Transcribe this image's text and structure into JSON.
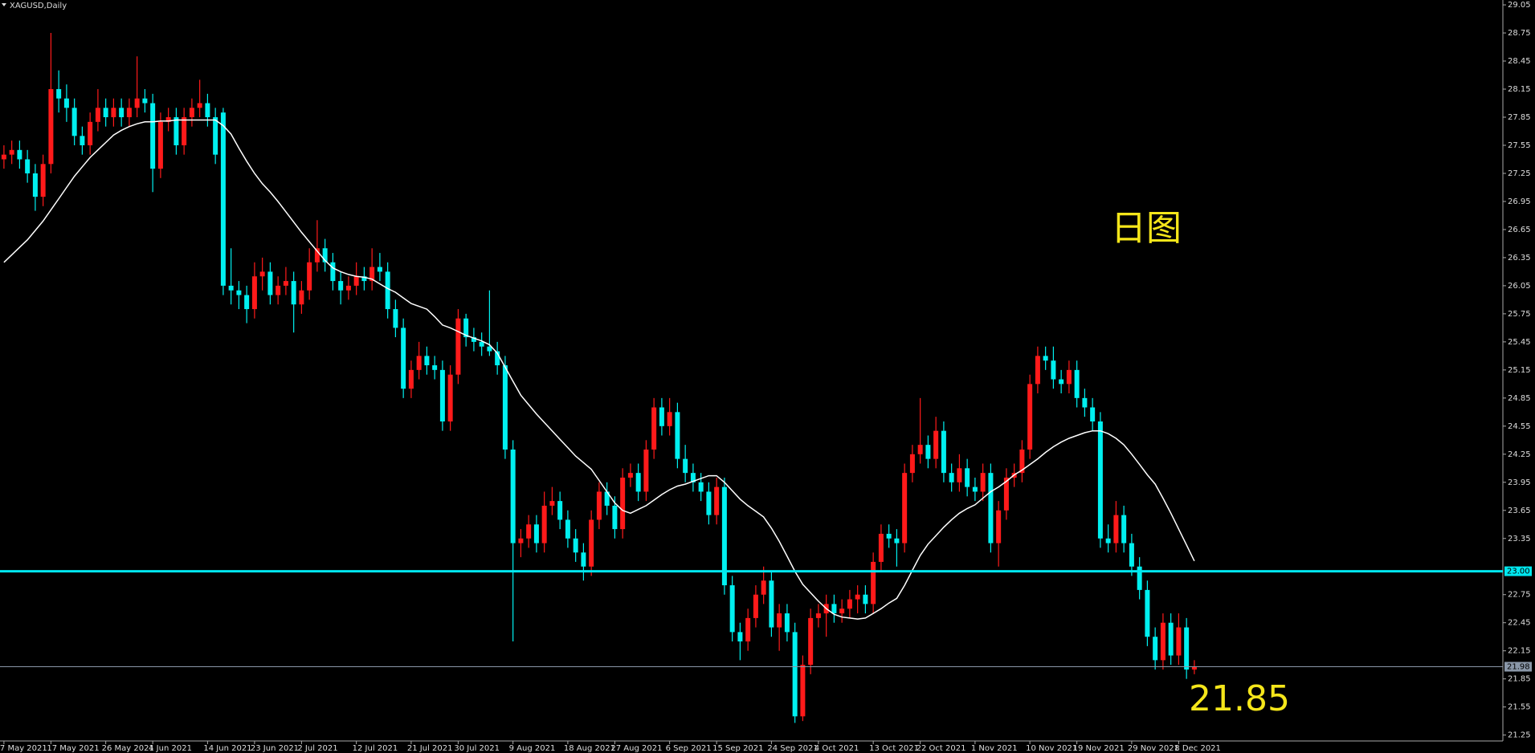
{
  "chart_data": {
    "type": "candlestick",
    "title": "XAGUSD,Daily",
    "ylim": [
      21.187,
      29.102
    ],
    "yticks": [
      29.05,
      28.75,
      28.45,
      28.15,
      27.85,
      27.55,
      27.25,
      26.95,
      26.65,
      26.35,
      26.05,
      25.75,
      25.45,
      25.15,
      24.85,
      24.55,
      24.25,
      23.95,
      23.65,
      23.35,
      22.75,
      22.45,
      22.15,
      21.85,
      21.55,
      21.25
    ],
    "xticks": [
      {
        "value": 0,
        "label": "7 May 2021"
      },
      {
        "value": 6,
        "label": "17 May 2021"
      },
      {
        "value": 13,
        "label": "26 May 2021"
      },
      {
        "value": 19,
        "label": "4 Jun 2021"
      },
      {
        "value": 26,
        "label": "14 Jun 2021"
      },
      {
        "value": 32,
        "label": "23 Jun 2021"
      },
      {
        "value": 38,
        "label": "2 Jul 2021"
      },
      {
        "value": 45,
        "label": "12 Jul 2021"
      },
      {
        "value": 52,
        "label": "21 Jul 2021"
      },
      {
        "value": 58,
        "label": "30 Jul 2021"
      },
      {
        "value": 65,
        "label": "9 Aug 2021"
      },
      {
        "value": 72,
        "label": "18 Aug 2021"
      },
      {
        "value": 78,
        "label": "27 Aug 2021"
      },
      {
        "value": 85,
        "label": "6 Sep 2021"
      },
      {
        "value": 91,
        "label": "15 Sep 2021"
      },
      {
        "value": 98,
        "label": "24 Sep 2021"
      },
      {
        "value": 104,
        "label": "4 Oct 2021"
      },
      {
        "value": 111,
        "label": "13 Oct 2021"
      },
      {
        "value": 117,
        "label": "22 Oct 2021"
      },
      {
        "value": 124,
        "label": "1 Nov 2021"
      },
      {
        "value": 131,
        "label": "10 Nov 2021"
      },
      {
        "value": 137,
        "label": "19 Nov 2021"
      },
      {
        "value": 144,
        "label": "29 Nov 2021"
      },
      {
        "value": 150,
        "label": "8 Dec 2021"
      }
    ],
    "up_color": "#ff1a1a",
    "down_color": "#00f0f0",
    "ohlc": [
      [
        27.4,
        27.55,
        27.3,
        27.45
      ],
      [
        27.45,
        27.6,
        27.35,
        27.5
      ],
      [
        27.5,
        27.6,
        27.3,
        27.4
      ],
      [
        27.4,
        27.5,
        27.15,
        27.25
      ],
      [
        27.25,
        27.35,
        26.85,
        27.0
      ],
      [
        27.0,
        27.45,
        26.9,
        27.35
      ],
      [
        27.35,
        28.75,
        27.25,
        28.15
      ],
      [
        28.15,
        28.35,
        27.9,
        28.05
      ],
      [
        28.05,
        28.2,
        27.8,
        27.95
      ],
      [
        27.95,
        28.05,
        27.55,
        27.65
      ],
      [
        27.65,
        27.75,
        27.45,
        27.55
      ],
      [
        27.55,
        27.9,
        27.45,
        27.8
      ],
      [
        27.8,
        28.15,
        27.7,
        27.95
      ],
      [
        27.95,
        28.05,
        27.75,
        27.85
      ],
      [
        27.85,
        28.05,
        27.75,
        27.95
      ],
      [
        27.95,
        28.05,
        27.75,
        27.85
      ],
      [
        27.85,
        28.05,
        27.75,
        27.95
      ],
      [
        27.95,
        28.5,
        27.85,
        28.05
      ],
      [
        28.05,
        28.15,
        27.9,
        28.0
      ],
      [
        28.0,
        28.1,
        27.05,
        27.3
      ],
      [
        27.3,
        27.9,
        27.2,
        27.8
      ],
      [
        27.8,
        27.95,
        27.7,
        27.85
      ],
      [
        27.85,
        27.95,
        27.45,
        27.55
      ],
      [
        27.55,
        27.95,
        27.45,
        27.85
      ],
      [
        27.85,
        28.05,
        27.75,
        27.95
      ],
      [
        27.95,
        28.25,
        27.85,
        28.0
      ],
      [
        28.0,
        28.1,
        27.75,
        27.85
      ],
      [
        27.85,
        27.95,
        27.35,
        27.45
      ],
      [
        27.9,
        27.95,
        25.95,
        26.05
      ],
      [
        26.05,
        26.45,
        25.85,
        26.0
      ],
      [
        26.0,
        26.1,
        25.8,
        25.95
      ],
      [
        25.95,
        26.05,
        25.65,
        25.8
      ],
      [
        25.8,
        26.3,
        25.7,
        26.15
      ],
      [
        26.15,
        26.35,
        26.0,
        26.2
      ],
      [
        26.2,
        26.3,
        25.85,
        25.95
      ],
      [
        25.95,
        26.15,
        25.85,
        26.05
      ],
      [
        26.05,
        26.25,
        25.95,
        26.1
      ],
      [
        26.1,
        26.2,
        25.55,
        25.85
      ],
      [
        25.85,
        26.1,
        25.75,
        26.0
      ],
      [
        26.0,
        26.45,
        25.9,
        26.3
      ],
      [
        26.3,
        26.75,
        26.2,
        26.45
      ],
      [
        26.45,
        26.55,
        26.2,
        26.3
      ],
      [
        26.3,
        26.4,
        26.0,
        26.1
      ],
      [
        26.1,
        26.2,
        25.85,
        26.0
      ],
      [
        26.0,
        26.15,
        25.9,
        26.05
      ],
      [
        26.05,
        26.3,
        25.95,
        26.15
      ],
      [
        26.15,
        26.25,
        26.0,
        26.1
      ],
      [
        26.1,
        26.45,
        26.0,
        26.25
      ],
      [
        26.25,
        26.4,
        26.1,
        26.2
      ],
      [
        26.2,
        26.3,
        25.7,
        25.8
      ],
      [
        25.8,
        25.9,
        25.5,
        25.6
      ],
      [
        25.6,
        25.7,
        24.85,
        24.95
      ],
      [
        24.95,
        25.25,
        24.85,
        25.15
      ],
      [
        25.15,
        25.45,
        25.05,
        25.3
      ],
      [
        25.3,
        25.4,
        25.1,
        25.2
      ],
      [
        25.2,
        25.3,
        25.05,
        25.15
      ],
      [
        25.15,
        25.25,
        24.5,
        24.6
      ],
      [
        24.6,
        25.2,
        24.5,
        25.1
      ],
      [
        25.1,
        25.8,
        25.0,
        25.7
      ],
      [
        25.7,
        25.75,
        25.4,
        25.5
      ],
      [
        25.5,
        25.6,
        25.35,
        25.45
      ],
      [
        25.45,
        25.55,
        25.3,
        25.4
      ],
      [
        25.4,
        26.0,
        25.3,
        25.35
      ],
      [
        25.35,
        25.45,
        25.1,
        25.2
      ],
      [
        25.2,
        25.3,
        24.2,
        24.3
      ],
      [
        24.3,
        24.4,
        22.25,
        23.3
      ],
      [
        23.3,
        23.45,
        23.15,
        23.35
      ],
      [
        23.35,
        23.6,
        23.25,
        23.5
      ],
      [
        23.5,
        23.6,
        23.2,
        23.3
      ],
      [
        23.3,
        23.85,
        23.2,
        23.7
      ],
      [
        23.7,
        23.9,
        23.6,
        23.75
      ],
      [
        23.75,
        23.85,
        23.45,
        23.55
      ],
      [
        23.55,
        23.65,
        23.25,
        23.35
      ],
      [
        23.35,
        23.45,
        23.1,
        23.2
      ],
      [
        23.2,
        23.3,
        22.9,
        23.05
      ],
      [
        23.05,
        23.65,
        22.95,
        23.55
      ],
      [
        23.55,
        23.95,
        23.45,
        23.85
      ],
      [
        23.85,
        23.95,
        23.6,
        23.7
      ],
      [
        23.7,
        23.8,
        23.35,
        23.45
      ],
      [
        23.45,
        24.1,
        23.35,
        24.0
      ],
      [
        24.0,
        24.15,
        23.9,
        24.05
      ],
      [
        24.05,
        24.15,
        23.75,
        23.85
      ],
      [
        23.85,
        24.4,
        23.75,
        24.3
      ],
      [
        24.3,
        24.85,
        24.2,
        24.75
      ],
      [
        24.75,
        24.85,
        24.45,
        24.55
      ],
      [
        24.55,
        24.85,
        24.45,
        24.7
      ],
      [
        24.7,
        24.8,
        24.1,
        24.2
      ],
      [
        24.2,
        24.35,
        23.95,
        24.05
      ],
      [
        24.05,
        24.15,
        23.85,
        23.95
      ],
      [
        23.95,
        24.05,
        23.75,
        23.85
      ],
      [
        23.85,
        23.95,
        23.5,
        23.6
      ],
      [
        23.6,
        24.0,
        23.5,
        23.9
      ],
      [
        23.9,
        24.0,
        22.75,
        22.85
      ],
      [
        22.85,
        22.95,
        22.25,
        22.35
      ],
      [
        22.35,
        22.45,
        22.05,
        22.25
      ],
      [
        22.25,
        22.6,
        22.15,
        22.5
      ],
      [
        22.5,
        22.85,
        22.4,
        22.75
      ],
      [
        22.75,
        23.05,
        22.65,
        22.9
      ],
      [
        22.9,
        23.0,
        22.3,
        22.4
      ],
      [
        22.4,
        22.65,
        22.15,
        22.55
      ],
      [
        22.55,
        22.65,
        22.25,
        22.35
      ],
      [
        22.35,
        22.45,
        21.38,
        21.45
      ],
      [
        21.45,
        22.1,
        21.4,
        22.0
      ],
      [
        22.0,
        22.6,
        21.9,
        22.5
      ],
      [
        22.5,
        22.65,
        22.4,
        22.55
      ],
      [
        22.55,
        22.75,
        22.3,
        22.65
      ],
      [
        22.65,
        22.75,
        22.45,
        22.55
      ],
      [
        22.55,
        22.7,
        22.45,
        22.6
      ],
      [
        22.6,
        22.8,
        22.5,
        22.7
      ],
      [
        22.7,
        22.85,
        22.55,
        22.75
      ],
      [
        22.75,
        22.85,
        22.55,
        22.65
      ],
      [
        22.65,
        23.2,
        22.55,
        23.1
      ],
      [
        23.1,
        23.5,
        23.0,
        23.4
      ],
      [
        23.4,
        23.5,
        23.25,
        23.35
      ],
      [
        23.35,
        23.45,
        23.05,
        23.3
      ],
      [
        23.3,
        24.15,
        23.2,
        24.05
      ],
      [
        24.05,
        24.35,
        23.95,
        24.25
      ],
      [
        24.25,
        24.85,
        24.15,
        24.35
      ],
      [
        24.35,
        24.45,
        24.1,
        24.2
      ],
      [
        24.2,
        24.65,
        24.1,
        24.5
      ],
      [
        24.5,
        24.6,
        23.95,
        24.05
      ],
      [
        24.05,
        24.15,
        23.85,
        23.95
      ],
      [
        23.95,
        24.25,
        23.85,
        24.1
      ],
      [
        24.1,
        24.2,
        23.8,
        23.9
      ],
      [
        23.9,
        24.0,
        23.75,
        23.85
      ],
      [
        23.85,
        24.15,
        23.75,
        24.05
      ],
      [
        24.05,
        24.15,
        23.2,
        23.3
      ],
      [
        23.3,
        23.75,
        23.05,
        23.65
      ],
      [
        23.65,
        24.1,
        23.55,
        24.0
      ],
      [
        24.0,
        24.15,
        23.9,
        24.05
      ],
      [
        24.05,
        24.4,
        23.95,
        24.3
      ],
      [
        24.3,
        25.1,
        24.2,
        25.0
      ],
      [
        25.0,
        25.4,
        24.9,
        25.3
      ],
      [
        25.3,
        25.4,
        25.15,
        25.25
      ],
      [
        25.25,
        25.4,
        24.95,
        25.05
      ],
      [
        25.05,
        25.15,
        24.9,
        25.0
      ],
      [
        25.0,
        25.25,
        24.9,
        25.15
      ],
      [
        25.15,
        25.25,
        24.75,
        24.85
      ],
      [
        24.85,
        24.95,
        24.65,
        24.75
      ],
      [
        24.75,
        24.85,
        24.5,
        24.6
      ],
      [
        24.6,
        24.7,
        23.25,
        23.35
      ],
      [
        23.35,
        23.5,
        23.2,
        23.3
      ],
      [
        23.3,
        23.75,
        23.2,
        23.6
      ],
      [
        23.6,
        23.7,
        23.2,
        23.3
      ],
      [
        23.3,
        23.4,
        22.95,
        23.05
      ],
      [
        23.05,
        23.15,
        22.7,
        22.8
      ],
      [
        22.8,
        22.9,
        22.2,
        22.3
      ],
      [
        22.3,
        22.4,
        21.95,
        22.05
      ],
      [
        22.05,
        22.55,
        21.95,
        22.45
      ],
      [
        22.45,
        22.55,
        22.0,
        22.1
      ],
      [
        22.1,
        22.55,
        22.0,
        22.4
      ],
      [
        22.4,
        22.5,
        21.85,
        21.95
      ],
      [
        21.95,
        22.05,
        21.9,
        21.98
      ]
    ],
    "ma": {
      "color": "#ffffff",
      "values": [
        26.3,
        26.38,
        26.46,
        26.54,
        26.64,
        26.74,
        26.86,
        26.98,
        27.1,
        27.22,
        27.32,
        27.42,
        27.5,
        27.58,
        27.66,
        27.71,
        27.75,
        27.78,
        27.8,
        27.8,
        27.81,
        27.81,
        27.82,
        27.82,
        27.82,
        27.82,
        27.82,
        27.82,
        27.76,
        27.67,
        27.52,
        27.38,
        27.25,
        27.14,
        27.05,
        26.95,
        26.84,
        26.73,
        26.62,
        26.52,
        26.42,
        26.32,
        26.24,
        26.2,
        26.17,
        26.15,
        26.14,
        26.12,
        26.07,
        26.02,
        25.98,
        25.92,
        25.86,
        25.83,
        25.8,
        25.72,
        25.63,
        25.6,
        25.56,
        25.52,
        25.49,
        25.46,
        25.42,
        25.33,
        25.18,
        25.03,
        24.88,
        24.78,
        24.68,
        24.59,
        24.5,
        24.41,
        24.32,
        24.23,
        24.16,
        24.09,
        23.97,
        23.85,
        23.73,
        23.65,
        23.62,
        23.66,
        23.7,
        23.76,
        23.82,
        23.87,
        23.91,
        23.93,
        23.96,
        23.99,
        24.02,
        24.02,
        23.95,
        23.86,
        23.77,
        23.7,
        23.64,
        23.58,
        23.46,
        23.32,
        23.16,
        23.0,
        22.86,
        22.77,
        22.68,
        22.6,
        22.54,
        22.51,
        22.5,
        22.49,
        22.5,
        22.55,
        22.6,
        22.66,
        22.71,
        22.85,
        23.01,
        23.17,
        23.29,
        23.38,
        23.47,
        23.55,
        23.62,
        23.67,
        23.71,
        23.78,
        23.85,
        23.9,
        23.96,
        24.03,
        24.08,
        24.14,
        24.2,
        24.27,
        24.33,
        24.38,
        24.42,
        24.45,
        24.48,
        24.5,
        24.5,
        24.47,
        24.42,
        24.35,
        24.25,
        24.14,
        24.03,
        23.93,
        23.78,
        23.62,
        23.45,
        23.28,
        23.11
      ]
    },
    "levels": [
      {
        "value": 23.0,
        "label": "23.00",
        "color": "#00e8f0"
      },
      {
        "value": 21.98,
        "label": "21.98",
        "color": "#8a97a8"
      }
    ],
    "annotations": [
      {
        "text": "日图",
        "color": "#f5e61a"
      },
      {
        "text": "21.85",
        "color": "#f5e61a"
      }
    ]
  }
}
